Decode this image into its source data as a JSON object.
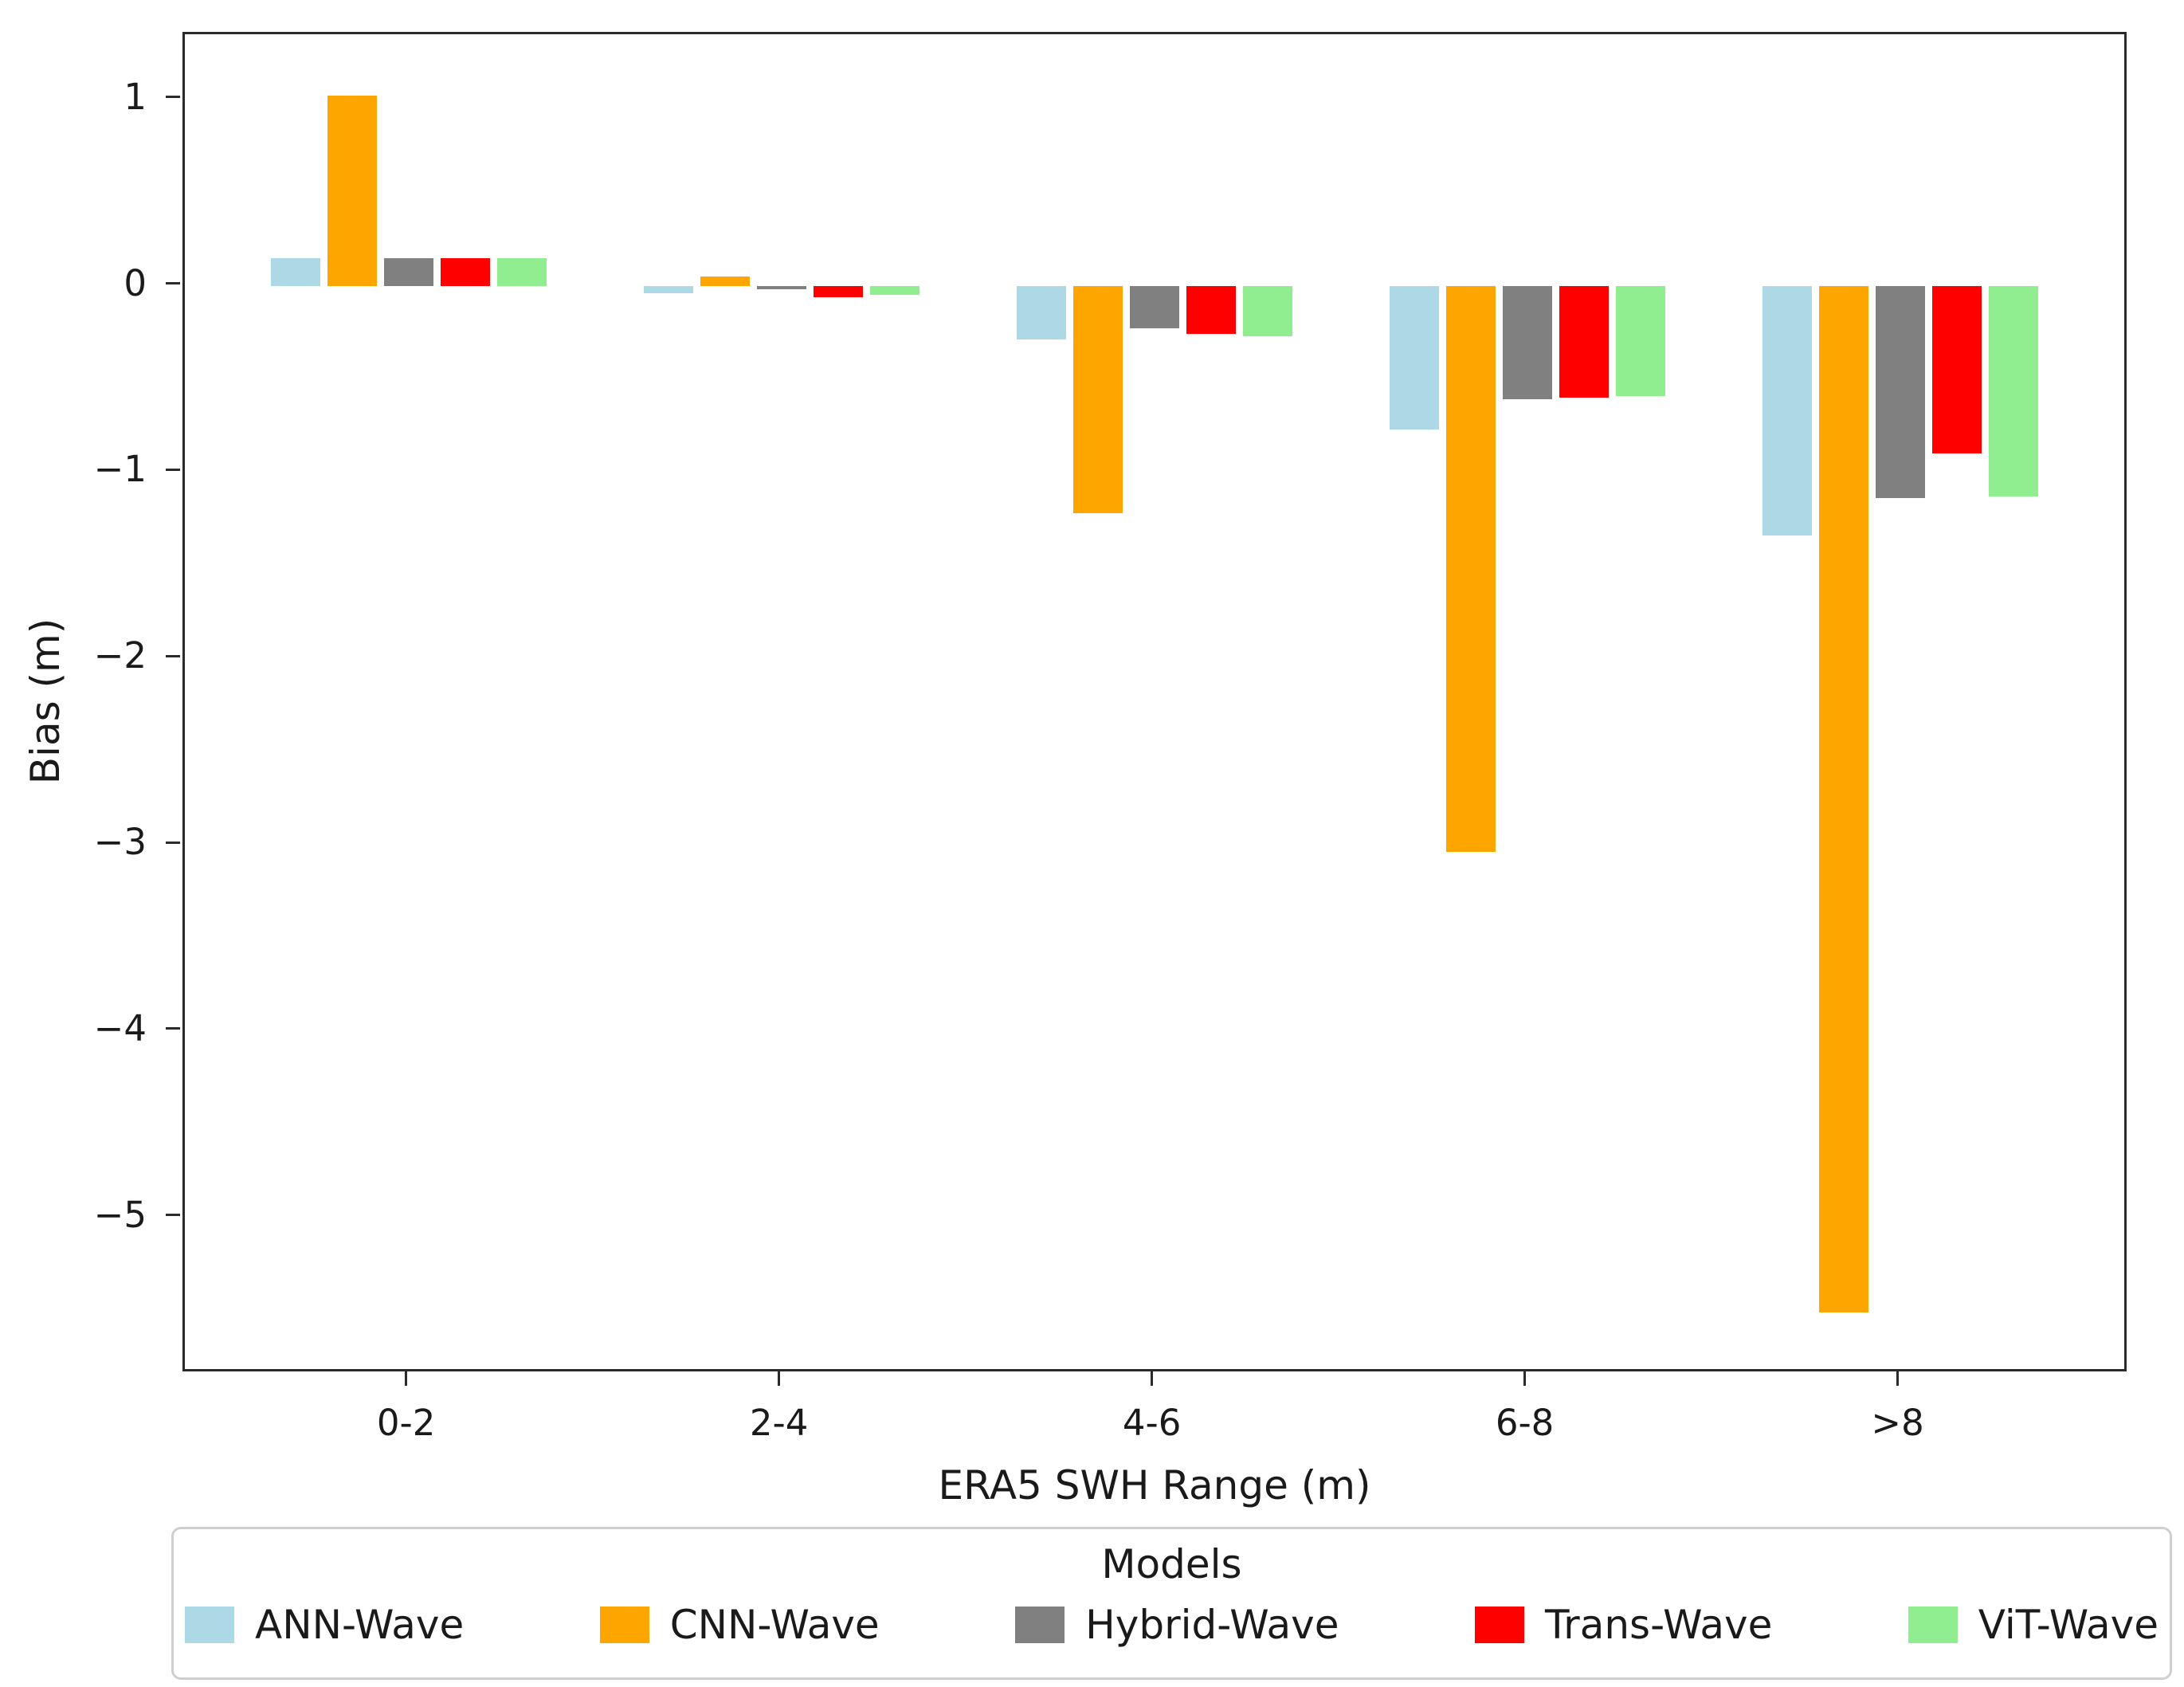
{
  "chart_data": {
    "type": "bar",
    "title": "",
    "xlabel": "ERA5 SWH Range (m)",
    "ylabel": "Bias (m)",
    "categories": [
      "0-2",
      "2-4",
      "4-6",
      "6-8",
      ">8"
    ],
    "series": [
      {
        "name": "ANN-Wave",
        "color": "#ADD8E6",
        "values": [
          0.15,
          -0.04,
          -0.29,
          -0.77,
          -1.34
        ]
      },
      {
        "name": "CNN-Wave",
        "color": "#FFA500",
        "values": [
          1.02,
          0.05,
          -1.22,
          -3.04,
          -5.51
        ]
      },
      {
        "name": "Hybrid-Wave",
        "color": "#808080",
        "values": [
          0.15,
          -0.02,
          -0.23,
          -0.61,
          -1.14
        ]
      },
      {
        "name": "Trans-Wave",
        "color": "#FF0000",
        "values": [
          0.15,
          -0.06,
          -0.26,
          -0.6,
          -0.9
        ]
      },
      {
        "name": "ViT-Wave",
        "color": "#90EE90",
        "values": [
          0.15,
          -0.05,
          -0.27,
          -0.59,
          -1.13
        ]
      }
    ],
    "ylim": [
      -5.84,
      1.35
    ],
    "yticks": [
      1,
      0,
      -1,
      -2,
      -3,
      -4,
      -5
    ],
    "ytick_labels": [
      "1",
      "0",
      "−1",
      "−2",
      "−3",
      "−4",
      "−5"
    ],
    "xtick_labels": [
      "0-2",
      "2-4",
      "4-6",
      "6-8",
      ">8"
    ],
    "legend_title": "Models",
    "legend_position": "bottom",
    "grid": false
  }
}
